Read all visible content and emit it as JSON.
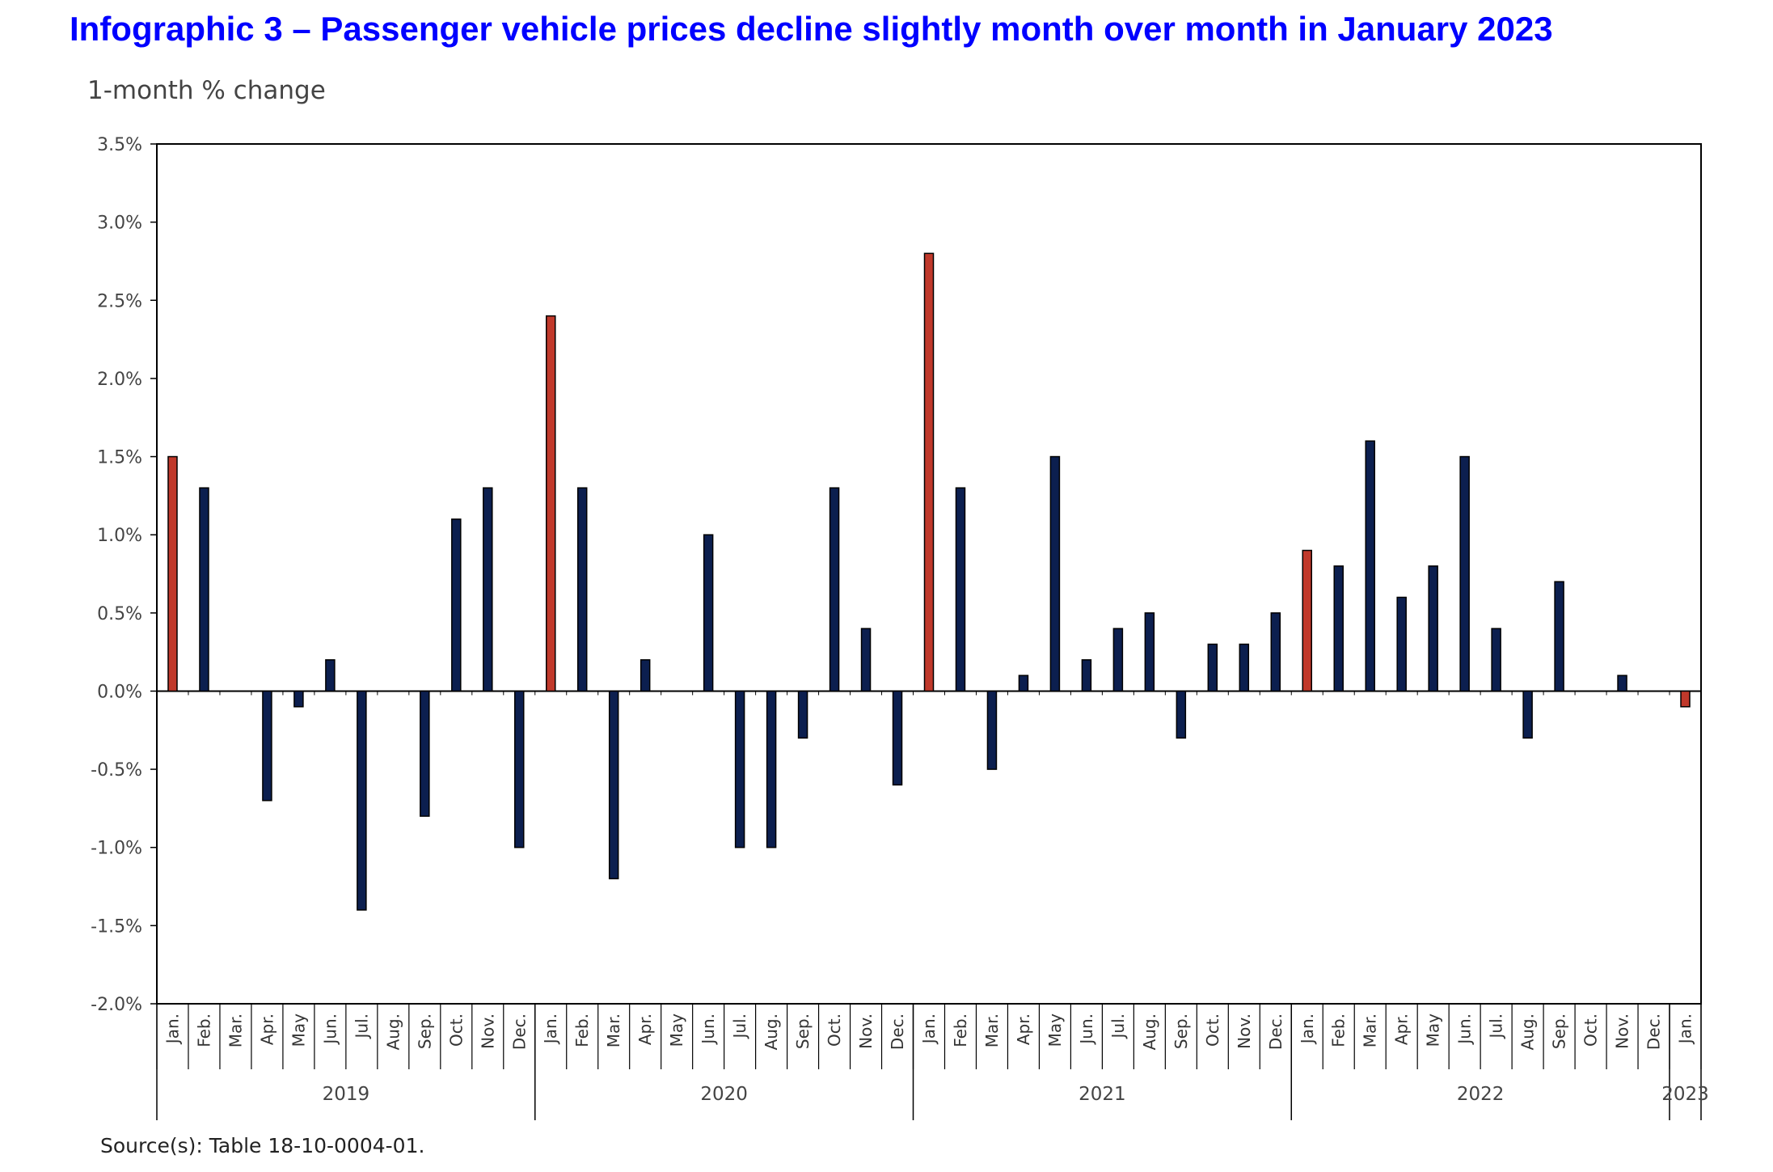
{
  "title": "Infographic 3 –  Passenger vehicle prices decline slightly month over month in January 2023",
  "source": "Source(s): Table 18-10-0004-01.",
  "colors": {
    "title": "#0000ff",
    "january_bar": "#c0392b",
    "other_bar": "#0c1f4f"
  },
  "chart_data": {
    "type": "bar",
    "ylabel": "1-month % change",
    "ylim": [
      -2.0,
      3.5
    ],
    "yticks": [
      "3.5%",
      "3.0%",
      "2.5%",
      "2.0%",
      "1.5%",
      "1.0%",
      "0.5%",
      "0.0%",
      "-0.5%",
      "-1.0%",
      "-1.5%",
      "-2.0%"
    ],
    "grid": false,
    "legend": "none",
    "categories": [
      "Jan.",
      "Feb.",
      "Mar.",
      "Apr.",
      "May",
      "Jun.",
      "Jul.",
      "Aug.",
      "Sep.",
      "Oct.",
      "Nov.",
      "Dec.",
      "Jan.",
      "Feb.",
      "Mar.",
      "Apr.",
      "May",
      "Jun.",
      "Jul.",
      "Aug.",
      "Sep.",
      "Oct.",
      "Nov.",
      "Dec.",
      "Jan.",
      "Feb.",
      "Mar.",
      "Apr.",
      "May",
      "Jun.",
      "Jul.",
      "Aug.",
      "Sep.",
      "Oct.",
      "Nov.",
      "Dec.",
      "Jan.",
      "Feb.",
      "Mar.",
      "Apr.",
      "May",
      "Jun.",
      "Jul.",
      "Aug.",
      "Sep.",
      "Oct.",
      "Nov.",
      "Dec.",
      "Jan."
    ],
    "year_groups": [
      {
        "label": "2019",
        "count": 12
      },
      {
        "label": "2020",
        "count": 12
      },
      {
        "label": "2021",
        "count": 12
      },
      {
        "label": "2022",
        "count": 12
      },
      {
        "label": "2023",
        "count": 1
      }
    ],
    "values": [
      1.5,
      1.3,
      0.0,
      -0.7,
      -0.1,
      0.2,
      -1.4,
      0.0,
      -0.8,
      1.1,
      1.3,
      -1.0,
      2.4,
      1.3,
      -1.2,
      0.2,
      0.0,
      1.0,
      -1.0,
      -1.0,
      -0.3,
      1.3,
      0.4,
      -0.6,
      2.8,
      1.3,
      -0.5,
      0.1,
      1.5,
      0.2,
      0.4,
      0.5,
      -0.3,
      0.3,
      0.3,
      0.5,
      0.9,
      0.8,
      1.6,
      0.6,
      0.8,
      1.5,
      0.4,
      -0.3,
      0.7,
      0.0,
      0.1,
      0.0,
      -0.1
    ],
    "highlight_indices": [
      0,
      12,
      24,
      36,
      48
    ]
  }
}
